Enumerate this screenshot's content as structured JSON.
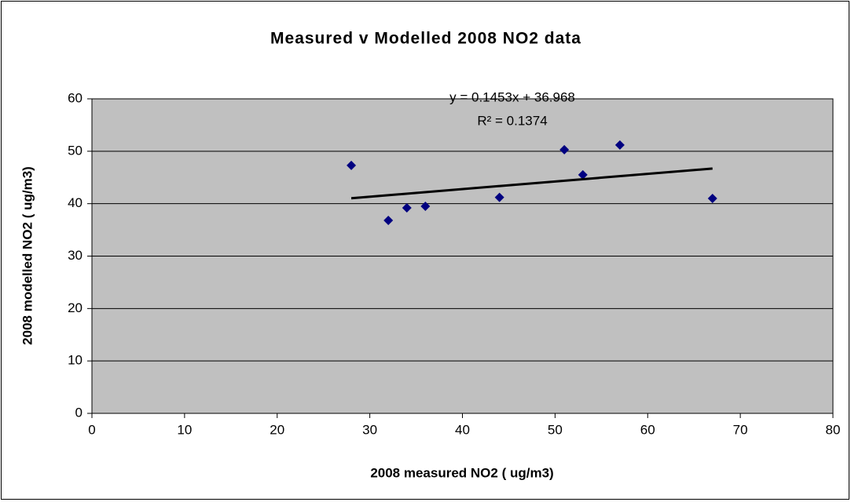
{
  "chart_data": {
    "type": "scatter",
    "title": "Measured v Modelled 2008 NO2 data",
    "x_label": "2008 measured NO2 ( ug/m3)",
    "y_label": "2008 modelled NO2 ( ug/m3)",
    "x": [
      28,
      32,
      34,
      36,
      44,
      51,
      53,
      57,
      67
    ],
    "series": [
      {
        "name": "NO2",
        "color": "#000080",
        "values": [
          47.3,
          36.8,
          39.2,
          39.5,
          41.2,
          50.3,
          45.5,
          51.2,
          41.0
        ]
      }
    ],
    "xlim": [
      0,
      80
    ],
    "xticks": [
      0,
      10,
      20,
      30,
      40,
      50,
      60,
      70,
      80
    ],
    "ylim": [
      0,
      60
    ],
    "yticks": [
      0,
      10,
      20,
      30,
      40,
      50,
      60
    ],
    "grid": true,
    "plot_background": "#c0c0c0",
    "trendline": {
      "slope": 0.1453,
      "intercept": 36.968,
      "color": "#000000",
      "label": "y = 0.1453x + 36.968",
      "r2_label": "R² = 0.1374"
    }
  }
}
